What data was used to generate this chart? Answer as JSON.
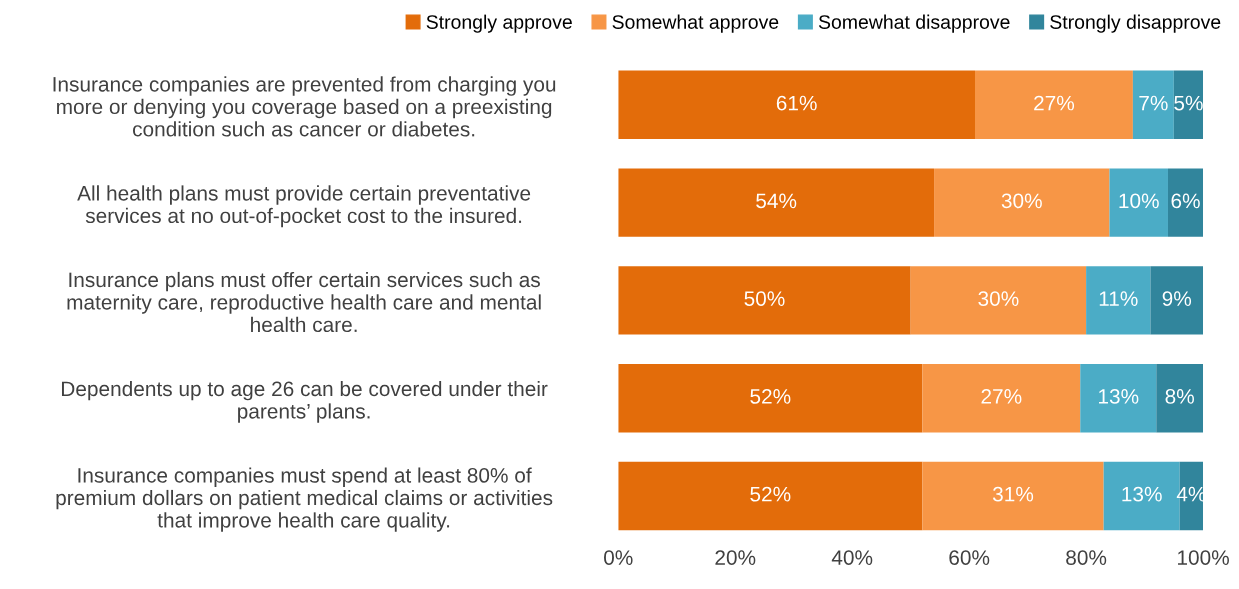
{
  "chart_data": {
    "type": "bar",
    "orientation": "horizontal",
    "stacked": true,
    "categories": [
      "Insurance companies are prevented from charging you\nmore or denying you coverage based on a preexisting\ncondition such as cancer or diabetes.",
      "All health plans must provide certain preventative\nservices at no out-of-pocket cost to the insured.",
      "Insurance plans must offer certain services such as\nmaternity care, reproductive health care and mental\nhealth care.",
      "Dependents up to age 26 can be covered under their\nparents’ plans.",
      "Insurance companies must spend at least 80% of\npremium dollars on patient medical claims or activities\nthat improve health care quality."
    ],
    "series": [
      {
        "name": "Strongly approve",
        "color": "#e36c0a",
        "values": [
          61,
          54,
          50,
          52,
          52
        ],
        "value_labels": [
          "61%",
          "54%",
          "50%",
          "52%",
          "52%"
        ]
      },
      {
        "name": "Somewhat approve",
        "color": "#f79646",
        "values": [
          27,
          30,
          30,
          27,
          31
        ],
        "value_labels": [
          "27%",
          "30%",
          "30%",
          "27%",
          "31%"
        ]
      },
      {
        "name": "Somewhat disapprove",
        "color": "#4bacc6",
        "values": [
          7,
          10,
          11,
          13,
          13
        ],
        "value_labels": [
          "7%",
          "10%",
          "11%",
          "13%",
          "13%"
        ]
      },
      {
        "name": "Strongly disapprove",
        "color": "#31859c",
        "values": [
          5,
          6,
          9,
          8,
          4
        ],
        "value_labels": [
          "5%",
          "6%",
          "9%",
          "8%",
          "4%"
        ]
      }
    ],
    "xlim": [
      0,
      100
    ],
    "xticks": [
      {
        "value": 0,
        "label": "0%"
      },
      {
        "value": 20,
        "label": "20%"
      },
      {
        "value": 40,
        "label": "40%"
      },
      {
        "value": 60,
        "label": "60%"
      },
      {
        "value": 80,
        "label": "80%"
      },
      {
        "value": 100,
        "label": "100%"
      }
    ],
    "grid": false,
    "legend": "top"
  }
}
